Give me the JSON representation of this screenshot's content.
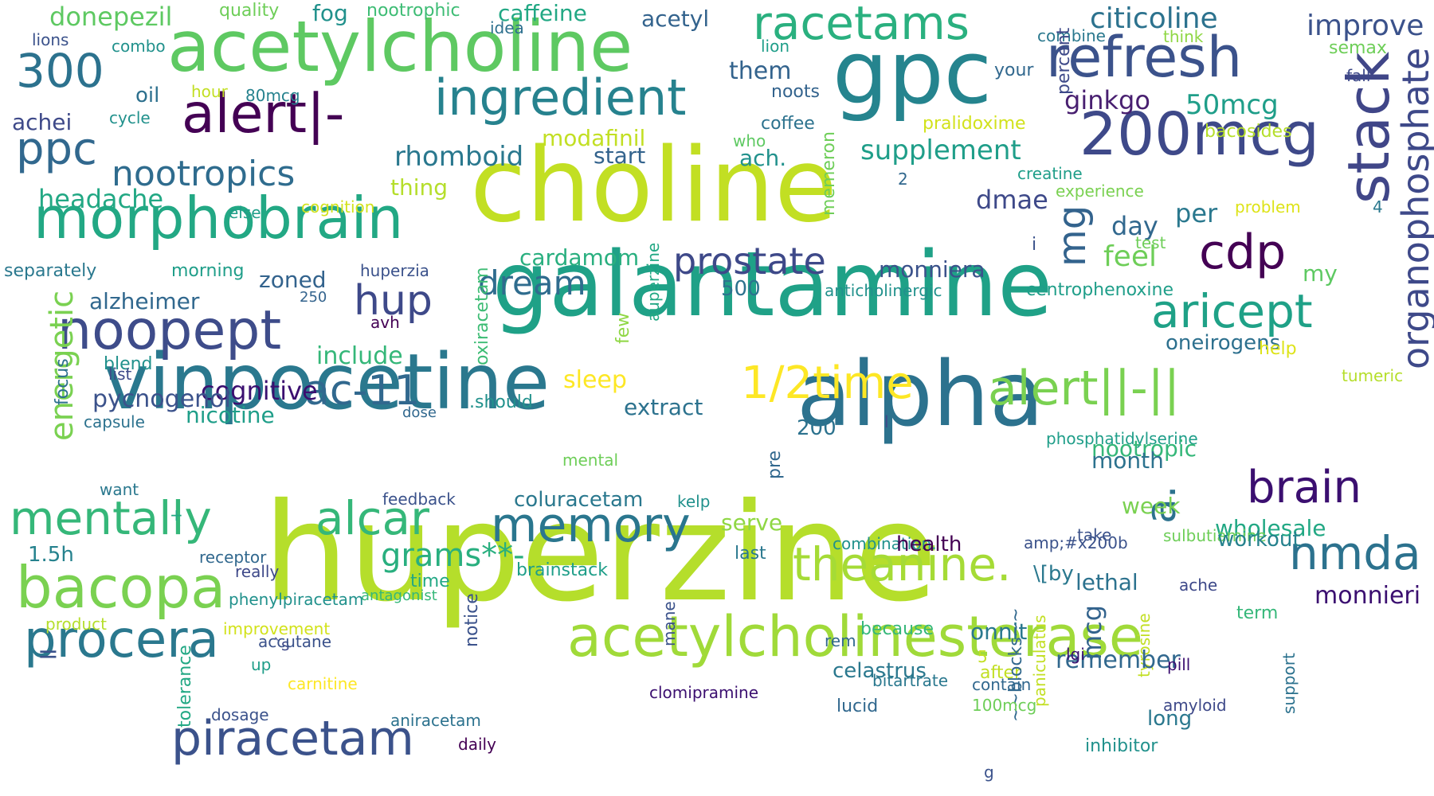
{
  "cloud": {
    "words": [
      {
        "text": "huperzine",
        "color": "#b5de2b"
      },
      {
        "text": "choline",
        "color": "#c2df23"
      },
      {
        "text": "galantamine",
        "color": "#1fa187"
      },
      {
        "text": "alpha",
        "color": "#2c728e"
      },
      {
        "text": "vinpocetine",
        "color": "#2a788e"
      },
      {
        "text": "gpc",
        "color": "#25848e"
      },
      {
        "text": "acetylcholine",
        "color": "#5ec962"
      },
      {
        "text": "acetylcholinesterase",
        "color": "#a0da39"
      },
      {
        "text": "morphobrain",
        "color": "#22a884"
      },
      {
        "text": "200mcg",
        "color": "#3e4989"
      },
      {
        "text": "racetams",
        "color": "#2ab07f"
      },
      {
        "text": "refresh",
        "color": "#3b528b"
      },
      {
        "text": "stack",
        "color": "#404688"
      },
      {
        "text": "noopept",
        "color": "#3e4c8a"
      },
      {
        "text": "alert|-",
        "color": "#440154"
      },
      {
        "text": "ingredient",
        "color": "#26828e"
      },
      {
        "text": "bacopa",
        "color": "#7ad151"
      },
      {
        "text": "procera",
        "color": "#2a788e"
      },
      {
        "text": "piracetam",
        "color": "#3b528b"
      },
      {
        "text": "mentally",
        "color": "#35b779"
      },
      {
        "text": "alcar",
        "color": "#35b779"
      },
      {
        "text": "memory",
        "color": "#2a768e"
      },
      {
        "text": "alert||-||",
        "color": "#7ad151"
      },
      {
        "text": "theanine.",
        "color": "#a5db36"
      },
      {
        "text": "1/2time",
        "color": "#fde725"
      },
      {
        "text": "brain",
        "color": "#3b0f70"
      },
      {
        "text": "nmda",
        "color": "#2c728e"
      },
      {
        "text": "aricept",
        "color": "#1fa187"
      },
      {
        "text": "organophosphate",
        "color": "#3e4989"
      },
      {
        "text": "cdp",
        "color": "#440154"
      },
      {
        "text": "mg",
        "color": "#33638d"
      },
      {
        "text": "300",
        "color": "#2c728e"
      },
      {
        "text": "ppc",
        "color": "#31688e"
      },
      {
        "text": "nootropics",
        "color": "#2f6c8e"
      },
      {
        "text": "hup",
        "color": "#3e4989"
      },
      {
        "text": "ac-11",
        "color": "#31688e"
      },
      {
        "text": "a.",
        "color": "#2c728e"
      },
      {
        "text": "prostate",
        "color": "#3e4989"
      },
      {
        "text": "dream",
        "color": "#2f6c8e"
      },
      {
        "text": "grams**-",
        "color": "#29af7f"
      },
      {
        "text": "energetic",
        "color": "#7ad151"
      },
      {
        "text": "donepezil",
        "color": "#5ec962"
      },
      {
        "text": "quality",
        "color": "#6ece58"
      },
      {
        "text": "fog",
        "color": "#21918c"
      },
      {
        "text": "nootrophic",
        "color": "#3dbc74"
      },
      {
        "text": "caffeine",
        "color": "#22a884"
      },
      {
        "text": "idea",
        "color": "#2d708e"
      },
      {
        "text": "acetyl",
        "color": "#33638d"
      },
      {
        "text": "citicoline",
        "color": "#2c728e"
      },
      {
        "text": "improve",
        "color": "#3b528b"
      },
      {
        "text": "lions",
        "color": "#3b528b"
      },
      {
        "text": "combo",
        "color": "#21918c"
      },
      {
        "text": "combine",
        "color": "#2a788e"
      },
      {
        "text": "think",
        "color": "#8fd744"
      },
      {
        "text": "semax",
        "color": "#6ece58"
      },
      {
        "text": "lion",
        "color": "#1f9e89"
      },
      {
        "text": "them",
        "color": "#33638d"
      },
      {
        "text": "your",
        "color": "#31688e"
      },
      {
        "text": "fall",
        "color": "#3e4989"
      },
      {
        "text": "oil",
        "color": "#2d708e"
      },
      {
        "text": "hour",
        "color": "#c2df23"
      },
      {
        "text": "80mcg",
        "color": "#26828e"
      },
      {
        "text": "noots",
        "color": "#33638d"
      },
      {
        "text": "percent",
        "color": "#3e4989"
      },
      {
        "text": "ginkgo",
        "color": "#481f70"
      },
      {
        "text": "50mcg",
        "color": "#1f9e89"
      },
      {
        "text": "achei",
        "color": "#3e4989"
      },
      {
        "text": "cycle",
        "color": "#21918c"
      },
      {
        "text": "coffee",
        "color": "#2c728e"
      },
      {
        "text": "pralidoxime",
        "color": "#d2e21b"
      },
      {
        "text": "bacosides",
        "color": "#b5de2b"
      },
      {
        "text": "modafinil",
        "color": "#c2df23"
      },
      {
        "text": "who",
        "color": "#5ec962"
      },
      {
        "text": "start",
        "color": "#33638d"
      },
      {
        "text": "ach.",
        "color": "#21918c"
      },
      {
        "text": "supplement",
        "color": "#1f9e89"
      },
      {
        "text": "rhomboid",
        "color": "#2a788e"
      },
      {
        "text": "creatine",
        "color": "#1f9e89"
      },
      {
        "text": "experience",
        "color": "#7ad151"
      },
      {
        "text": "problem",
        "color": "#dde318"
      },
      {
        "text": "headache",
        "color": "#22a884"
      },
      {
        "text": "thing",
        "color": "#b5de2b"
      },
      {
        "text": "cognition",
        "color": "#d2e21b"
      },
      {
        "text": "else",
        "color": "#1f9e89"
      },
      {
        "text": "memeron",
        "color": "#6ece58"
      },
      {
        "text": "dmae",
        "color": "#3e4989"
      },
      {
        "text": "per",
        "color": "#2a788e"
      },
      {
        "text": "4",
        "color": "#2a788e"
      },
      {
        "text": "day",
        "color": "#31688e"
      },
      {
        "text": "2",
        "color": "#31688e"
      },
      {
        "text": "test",
        "color": "#6ece58"
      },
      {
        "text": "i",
        "color": "#3b528b"
      },
      {
        "text": "feel",
        "color": "#6ece58"
      },
      {
        "text": "my",
        "color": "#5ec962"
      },
      {
        "text": "separately",
        "color": "#2a788e"
      },
      {
        "text": "morning",
        "color": "#1f9e89"
      },
      {
        "text": "huperzia",
        "color": "#3b528b"
      },
      {
        "text": "cardamom",
        "color": "#29af7f"
      },
      {
        "text": "zoned",
        "color": "#33638d"
      },
      {
        "text": "monniera",
        "color": "#3b528b"
      },
      {
        "text": "250",
        "color": "#33638d"
      },
      {
        "text": "oxiracetam",
        "color": "#3dbc74"
      },
      {
        "text": "auperzine",
        "color": "#22a884"
      },
      {
        "text": "500",
        "color": "#2c728e"
      },
      {
        "text": "anticholinergic",
        "color": "#21918c"
      },
      {
        "text": "centrophenoxine",
        "color": "#1f9e89"
      },
      {
        "text": "alzheimer",
        "color": "#31688e"
      },
      {
        "text": "few",
        "color": "#8fd744"
      },
      {
        "text": "avh",
        "color": "#440154"
      },
      {
        "text": "oneirogens",
        "color": "#2d708e"
      },
      {
        "text": "blend",
        "color": "#21918c"
      },
      {
        "text": "include",
        "color": "#35b779"
      },
      {
        "text": "dose",
        "color": "#31688e"
      },
      {
        "text": "list",
        "color": "#3e4989"
      },
      {
        "text": "help",
        "color": "#dde318"
      },
      {
        "text": "tumeric",
        "color": "#b5de2b"
      },
      {
        "text": "focus",
        "color": "#2d708e"
      },
      {
        "text": "cognitive",
        "color": "#3b0f70"
      },
      {
        "text": "sleep",
        "color": "#fde725"
      },
      {
        "text": "pycnogenol",
        "color": "#3b528b"
      },
      {
        "text": ".should",
        "color": "#21918c"
      },
      {
        "text": "nicotine",
        "color": "#1f9e89"
      },
      {
        "text": "extract",
        "color": "#2c728e"
      },
      {
        "text": "capsule",
        "color": "#2c728e"
      },
      {
        "text": "l",
        "color": "#3e4989"
      },
      {
        "text": "200",
        "color": "#2c728e"
      },
      {
        "text": "phosphatidylserine",
        "color": "#1f9e89"
      },
      {
        "text": "nootropic",
        "color": "#35b779"
      },
      {
        "text": "pre",
        "color": "#31688e"
      },
      {
        "text": "mental",
        "color": "#6ece58"
      },
      {
        "text": "month",
        "color": "#2c728e"
      },
      {
        "text": "want",
        "color": "#2a788e"
      },
      {
        "text": "feedback",
        "color": "#3b528b"
      },
      {
        "text": "coluracetam",
        "color": "#2a788e"
      },
      {
        "text": "kelp",
        "color": "#21918c"
      },
      {
        "text": "week",
        "color": "#7ad151"
      },
      {
        "text": "wholesale",
        "color": "#22a884"
      },
      {
        "text": "serve",
        "color": "#8fd744"
      },
      {
        "text": "take",
        "color": "#3b528b"
      },
      {
        "text": "sulbutiamine",
        "color": "#6ece58"
      },
      {
        "text": "workout",
        "color": "#26828e"
      },
      {
        "text": "amp;#x200b",
        "color": "#3b528b"
      },
      {
        "text": "combination.",
        "color": "#21918c"
      },
      {
        "text": "last",
        "color": "#2a788e"
      },
      {
        "text": "1.5h",
        "color": "#26828e"
      },
      {
        "text": "health",
        "color": "#440154"
      },
      {
        "text": "really",
        "color": "#3e4989"
      },
      {
        "text": "brainstack",
        "color": "#1f9e89"
      },
      {
        "text": "\\[by",
        "color": "#2a788e"
      },
      {
        "text": "lethal",
        "color": "#2c728e"
      },
      {
        "text": "ache",
        "color": "#3e4989"
      },
      {
        "text": "antagonist",
        "color": "#35b779"
      },
      {
        "text": "product",
        "color": "#b5de2b"
      },
      {
        "text": "=",
        "color": "#3b528b"
      },
      {
        "text": "tolerance",
        "color": "#22a884"
      },
      {
        "text": "time",
        "color": "#22a884"
      },
      {
        "text": "improvement",
        "color": "#d2e21b"
      },
      {
        "text": "notice",
        "color": "#3b528b"
      },
      {
        "text": "mane",
        "color": "#3b528b"
      },
      {
        "text": "paniculatus",
        "color": "#c2df23"
      },
      {
        "text": "onnit",
        "color": "#2a788e"
      },
      {
        "text": "mcg",
        "color": "#33638d"
      },
      {
        "text": "tyrosine",
        "color": "#c2df23"
      },
      {
        "text": "monnieri",
        "color": "#3b0f70"
      },
      {
        "text": "`s",
        "color": "#3e4989"
      },
      {
        "text": "because",
        "color": "#35b779"
      },
      {
        "text": "rem",
        "color": "#31688e"
      },
      {
        "text": "remember",
        "color": "#31688e"
      },
      {
        "text": "up",
        "color": "#1f9e89"
      },
      {
        "text": "5",
        "color": "#c2df23"
      },
      {
        "text": "pill",
        "color": "#3b0f70"
      },
      {
        "text": "celastrus",
        "color": "#2a788e"
      },
      {
        "text": "contain",
        "color": "#31688e"
      },
      {
        "text": "after",
        "color": "#c2df23"
      },
      {
        "text": "lgi",
        "color": "#3b0f70"
      },
      {
        "text": "term",
        "color": "#35b779"
      },
      {
        "text": "~~blocks~~",
        "color": "#31688e"
      },
      {
        "text": "support",
        "color": "#2c728e"
      },
      {
        "text": "100mcg",
        "color": "#6ece58"
      },
      {
        "text": "amyloid",
        "color": "#3e4989"
      },
      {
        "text": "lucid",
        "color": "#31688e"
      },
      {
        "text": "aniracetam",
        "color": "#2c728e"
      },
      {
        "text": "inhibitor",
        "color": "#21918c"
      },
      {
        "text": "daily",
        "color": "#440154"
      },
      {
        "text": "g",
        "color": "#3b528b"
      },
      {
        "text": "dosage",
        "color": "#3b528b"
      },
      {
        "text": "clomipramine",
        "color": "#3b0f70"
      },
      {
        "text": "long",
        "color": "#2a788e"
      },
      {
        "text": "bitartrate",
        "color": "#2a788e"
      },
      {
        "text": "+",
        "color": "#22a884"
      },
      {
        "text": "receptor",
        "color": "#31688e"
      },
      {
        "text": "phenylpiracetam",
        "color": "#21918c"
      },
      {
        "text": "accutane",
        "color": "#3b528b"
      },
      {
        "text": "carnitine",
        "color": "#fde725"
      }
    ]
  }
}
